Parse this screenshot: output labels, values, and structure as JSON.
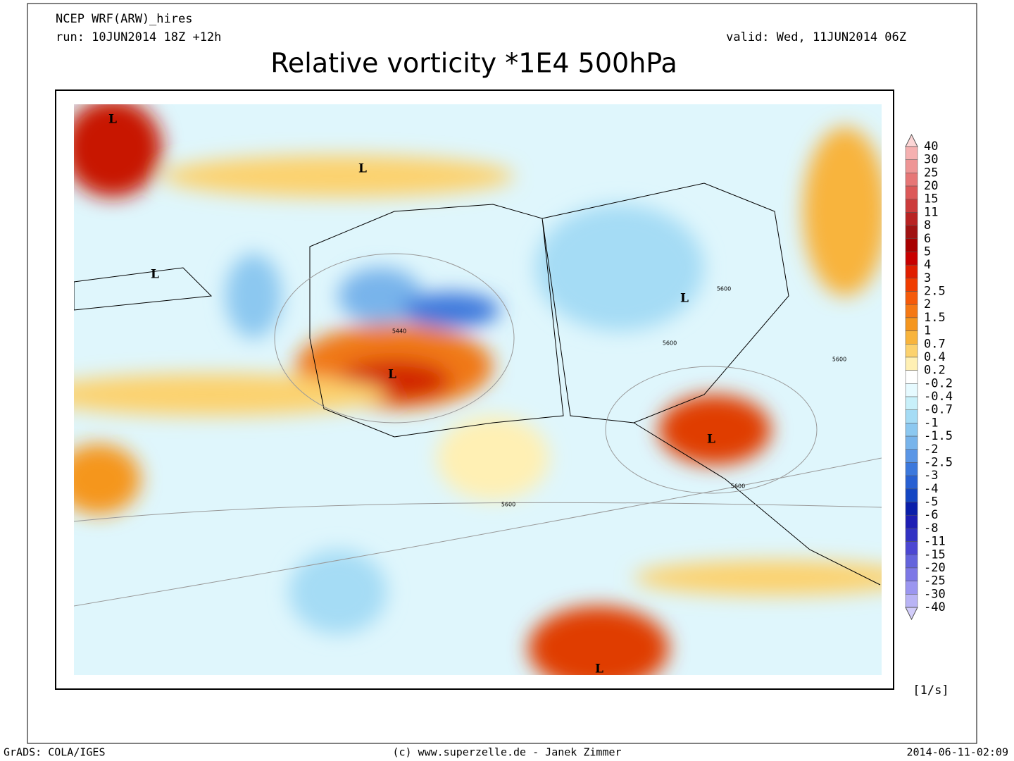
{
  "header": {
    "model": "NCEP WRF(ARW)_hires",
    "run": "run: 10JUN2014 18Z +12h",
    "valid": "valid: Wed, 11JUN2014 06Z",
    "title": "Relative vorticity *1E4 500hPa"
  },
  "map": {
    "lows": [
      "L",
      "L",
      "L",
      "L",
      "L",
      "L",
      "L"
    ],
    "contour_labels": [
      "5440",
      "5600",
      "5600",
      "5600",
      "5600",
      "5600"
    ]
  },
  "colorbar": {
    "labels": [
      "40",
      "30",
      "25",
      "20",
      "15",
      "11",
      "8",
      "6",
      "5",
      "4",
      "3",
      "2.5",
      "2",
      "1.5",
      "1",
      "0.7",
      "0.4",
      "0.2",
      "-0.2",
      "-0.4",
      "-0.7",
      "-1",
      "-1.5",
      "-2",
      "-2.5",
      "-3",
      "-4",
      "-5",
      "-6",
      "-8",
      "-11",
      "-15",
      "-20",
      "-25",
      "-30",
      "-40"
    ],
    "colors": [
      "#fcd6d6",
      "#f5b0b0",
      "#ee9595",
      "#e67676",
      "#dc5858",
      "#cc3b3b",
      "#b82222",
      "#a01212",
      "#a80000",
      "#c80000",
      "#e01e00",
      "#f03c00",
      "#f55a0a",
      "#f57814",
      "#f5961e",
      "#f8b43c",
      "#fcd26e",
      "#fff0b4",
      "#ffffff",
      "#e6faff",
      "#c8f0fa",
      "#a5dcf5",
      "#8cc8f0",
      "#78b4eb",
      "#5a96e6",
      "#3c78dc",
      "#2860d2",
      "#1446c3",
      "#0a1eaa",
      "#1e1eb4",
      "#3232c3",
      "#4b46d2",
      "#6464dc",
      "#7d78e6",
      "#9b96f0",
      "#b9b4f5",
      "#d2cdfa"
    ],
    "unit": "[1/s]"
  },
  "footer": {
    "left": "GrADS: COLA/IGES",
    "center": "(c) www.superzelle.de - Janek Zimmer",
    "right": "2014-06-11-02:09"
  }
}
